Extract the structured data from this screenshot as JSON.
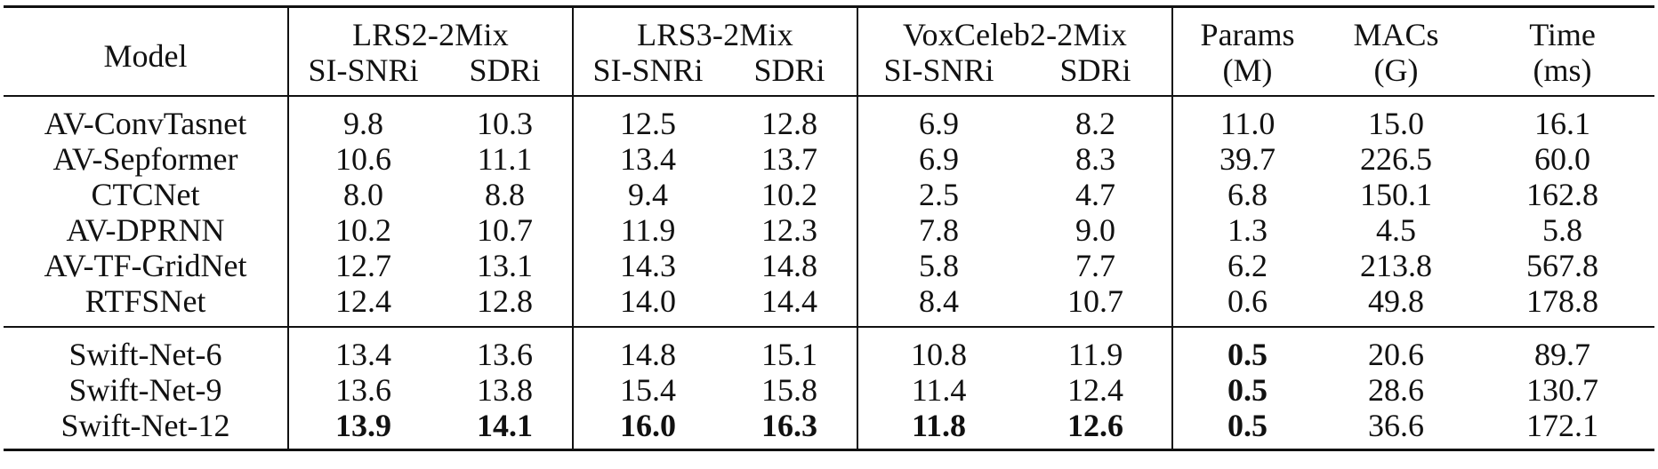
{
  "header": {
    "model": "Model",
    "groups": [
      "LRS2-2Mix",
      "LRS3-2Mix",
      "VoxCeleb2-2Mix"
    ],
    "metric_cols": [
      "SI-SNRi",
      "SDRi"
    ],
    "params": [
      "Params",
      "(M)"
    ],
    "macs": [
      "MACs",
      "(G)"
    ],
    "time": [
      "Time",
      "(ms)"
    ]
  },
  "rows_a": [
    {
      "model": "AV-ConvTasnet",
      "vals": [
        "9.8",
        "10.3",
        "12.5",
        "12.8",
        "6.9",
        "8.2",
        "11.0",
        "15.0",
        "16.1"
      ]
    },
    {
      "model": "AV-Sepformer",
      "vals": [
        "10.6",
        "11.1",
        "13.4",
        "13.7",
        "6.9",
        "8.3",
        "39.7",
        "226.5",
        "60.0"
      ]
    },
    {
      "model": "CTCNet",
      "vals": [
        "8.0",
        "8.8",
        "9.4",
        "10.2",
        "2.5",
        "4.7",
        "6.8",
        "150.1",
        "162.8"
      ]
    },
    {
      "model": "AV-DPRNN",
      "vals": [
        "10.2",
        "10.7",
        "11.9",
        "12.3",
        "7.8",
        "9.0",
        "1.3",
        "4.5",
        "5.8"
      ]
    },
    {
      "model": "AV-TF-GridNet",
      "vals": [
        "12.7",
        "13.1",
        "14.3",
        "14.8",
        "5.8",
        "7.7",
        "6.2",
        "213.8",
        "567.8"
      ]
    },
    {
      "model": "RTFSNet",
      "vals": [
        "12.4",
        "12.8",
        "14.0",
        "14.4",
        "8.4",
        "10.7",
        "0.6",
        "49.8",
        "178.8"
      ]
    }
  ],
  "rows_b": [
    {
      "model": "Swift-Net-6",
      "vals": [
        "13.4",
        "13.6",
        "14.8",
        "15.1",
        "10.8",
        "11.9",
        "0.5",
        "20.6",
        "89.7"
      ]
    },
    {
      "model": "Swift-Net-9",
      "vals": [
        "13.6",
        "13.8",
        "15.4",
        "15.8",
        "11.4",
        "12.4",
        "0.5",
        "28.6",
        "130.7"
      ]
    },
    {
      "model": "Swift-Net-12",
      "vals": [
        "13.9",
        "14.1",
        "16.0",
        "16.3",
        "11.8",
        "12.6",
        "0.5",
        "36.6",
        "172.1"
      ]
    }
  ]
}
